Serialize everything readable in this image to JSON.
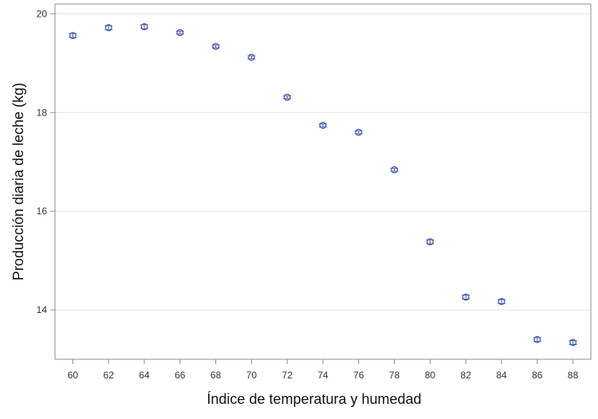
{
  "chart_data": {
    "type": "scatter",
    "title": "",
    "xlabel": "Índice de temperatura y humedad",
    "ylabel": "Producción diaria de leche (kg)",
    "x": [
      60,
      62,
      64,
      66,
      68,
      70,
      72,
      74,
      76,
      78,
      80,
      82,
      84,
      86,
      88
    ],
    "series": [
      {
        "values": [
          19.56,
          19.72,
          19.74,
          19.62,
          19.34,
          19.12,
          18.31,
          17.74,
          17.6,
          16.84,
          15.38,
          14.26,
          14.17,
          13.4,
          13.34
        ],
        "error": [
          0.04,
          0.04,
          0.04,
          0.03,
          0.03,
          0.03,
          0.03,
          0.03,
          0.03,
          0.03,
          0.04,
          0.04,
          0.04,
          0.04,
          0.04
        ]
      }
    ],
    "xticks": [
      "60",
      "62",
      "64",
      "66",
      "68",
      "70",
      "72",
      "74",
      "76",
      "78",
      "80",
      "82",
      "84",
      "86",
      "88"
    ],
    "yticks": [
      "14",
      "16",
      "18",
      "20"
    ],
    "xlim": [
      59,
      89
    ],
    "ylim": [
      13.0,
      20.2
    ],
    "grid": "horizontal",
    "marker": "circle-with-error-bar",
    "colors": {
      "marker": "#4a5aa8",
      "grid": "#e2e2e2",
      "frame": "#8c8c8c"
    }
  }
}
